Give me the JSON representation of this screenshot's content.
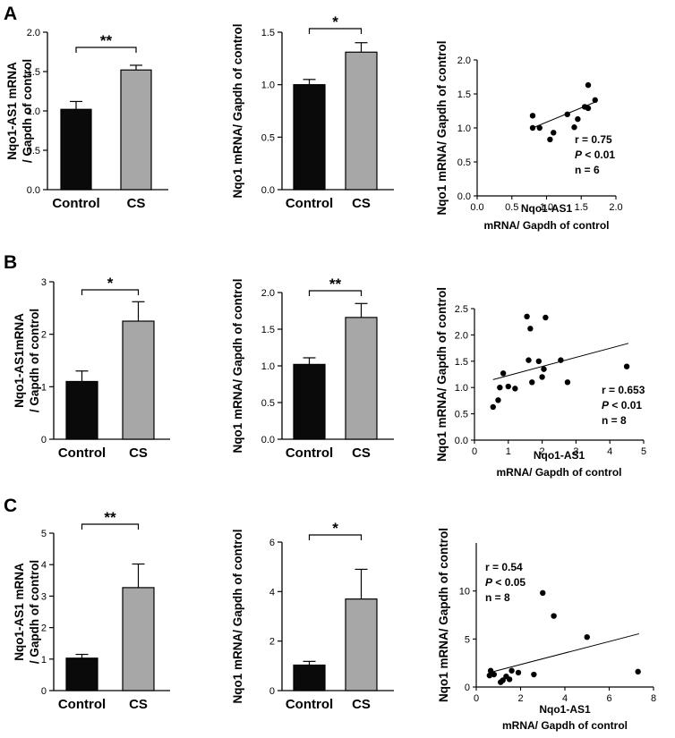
{
  "chart_data": [
    {
      "panel": "A",
      "type": "bar",
      "title": "",
      "categories": [
        "Control",
        "CS"
      ],
      "values": [
        1.02,
        1.52
      ],
      "errors": [
        0.1,
        0.06
      ],
      "bar_colors": [
        "#0a0a0a",
        "#a7a7a7"
      ],
      "ylabel": [
        "Nqo1-AS1 mRNA",
        "/ Gapdh of control"
      ],
      "ylim": [
        0,
        2.0
      ],
      "yticks": [
        "0.0",
        "0.5",
        "1.0",
        "1.5",
        "2.0"
      ],
      "significance": "**"
    },
    {
      "panel": "A",
      "type": "bar",
      "title": "",
      "categories": [
        "Control",
        "CS"
      ],
      "values": [
        1.0,
        1.31
      ],
      "errors": [
        0.05,
        0.09
      ],
      "bar_colors": [
        "#0a0a0a",
        "#a7a7a7"
      ],
      "ylabel": [
        "Nqo1 mRNA/ Gapdh of control"
      ],
      "ylim": [
        0,
        1.5
      ],
      "yticks": [
        "0.0",
        "0.5",
        "1.0",
        "1.5"
      ],
      "significance": "*"
    },
    {
      "panel": "A",
      "type": "scatter",
      "title": "",
      "x": [
        0.8,
        0.8,
        0.9,
        1.05,
        1.1,
        1.3,
        1.4,
        1.45,
        1.55,
        1.6,
        1.6,
        1.7
      ],
      "y": [
        1.18,
        1.0,
        1.0,
        0.83,
        0.93,
        1.2,
        1.01,
        1.13,
        1.31,
        1.29,
        1.63,
        1.41
      ],
      "trend": [
        [
          0.8,
          1.0
        ],
        [
          1.7,
          1.38
        ]
      ],
      "xlabel": [
        "Nqo1-AS1",
        "mRNA/ Gapdh of control"
      ],
      "ylabel": [
        "Nqo1 mRNA/ Gapdh of control"
      ],
      "xlim": [
        0,
        2.0
      ],
      "ylim": [
        0,
        2.0
      ],
      "xticks": [
        "0.0",
        "0.5",
        "1.0",
        "1.5",
        "2.0"
      ],
      "yticks": [
        "0.0",
        "0.5",
        "1.0",
        "1.5",
        "2.0"
      ],
      "stats": [
        {
          "key": "r",
          "sep": " = ",
          "value": "0.75"
        },
        {
          "key": "P",
          "sep": " < ",
          "value": "0.01"
        },
        {
          "key": "n",
          "sep": " = ",
          "value": "6"
        }
      ]
    },
    {
      "panel": "B",
      "type": "bar",
      "title": "",
      "categories": [
        "Control",
        "CS"
      ],
      "values": [
        1.1,
        2.25
      ],
      "errors": [
        0.2,
        0.37
      ],
      "bar_colors": [
        "#0a0a0a",
        "#a7a7a7"
      ],
      "ylabel": [
        "Nqo1-AS1mRNA",
        "/ Gapdh of control"
      ],
      "ylim": [
        0,
        3
      ],
      "yticks": [
        "0",
        "1",
        "2",
        "3"
      ],
      "significance": "*"
    },
    {
      "panel": "B",
      "type": "bar",
      "title": "",
      "categories": [
        "Control",
        "CS"
      ],
      "values": [
        1.02,
        1.66
      ],
      "errors": [
        0.09,
        0.19
      ],
      "bar_colors": [
        "#0a0a0a",
        "#a7a7a7"
      ],
      "ylabel": [
        "Nqo1 mRNA/ Gapdh of control"
      ],
      "ylim": [
        0,
        2.0
      ],
      "yticks": [
        "0.0",
        "0.5",
        "1.0",
        "1.5",
        "2.0"
      ],
      "significance": "**"
    },
    {
      "panel": "B",
      "type": "scatter",
      "title": "",
      "x": [
        0.55,
        0.7,
        0.75,
        0.85,
        1.0,
        1.2,
        1.55,
        1.6,
        1.65,
        1.7,
        1.9,
        2.0,
        2.05,
        2.1,
        2.55,
        2.75,
        4.5
      ],
      "y": [
        0.63,
        0.76,
        1.0,
        1.27,
        1.02,
        0.98,
        2.35,
        1.52,
        2.12,
        1.1,
        1.5,
        1.2,
        1.35,
        2.33,
        1.52,
        1.1,
        1.4
      ],
      "trend": [
        [
          0.55,
          1.15
        ],
        [
          4.55,
          1.84
        ]
      ],
      "xlabel": [
        "Nqo1-AS1",
        "mRNA/ Gapdh of control"
      ],
      "ylabel": [
        "Nqo1 mRNA/ Gapdh of control"
      ],
      "xlim": [
        0,
        5
      ],
      "ylim": [
        0,
        2.5
      ],
      "xticks": [
        "0",
        "1",
        "2",
        "3",
        "4",
        "5"
      ],
      "yticks": [
        "0.0",
        "0.5",
        "1.0",
        "1.5",
        "2.0",
        "2.5"
      ],
      "stats": [
        {
          "key": "r",
          "sep": " = ",
          "value": "0.653"
        },
        {
          "key": "P",
          "sep": " < ",
          "value": "0.01"
        },
        {
          "key": "n",
          "sep": " = ",
          "value": "8"
        }
      ]
    },
    {
      "panel": "C",
      "type": "bar",
      "title": "",
      "categories": [
        "Control",
        "CS"
      ],
      "values": [
        1.03,
        3.27
      ],
      "errors": [
        0.12,
        0.75
      ],
      "bar_colors": [
        "#0a0a0a",
        "#a7a7a7"
      ],
      "ylabel": [
        "Nqo1-AS1 mRNA",
        "/ Gapdh of control"
      ],
      "ylim": [
        0,
        5
      ],
      "yticks": [
        "0",
        "1",
        "2",
        "3",
        "4",
        "5"
      ],
      "significance": "**"
    },
    {
      "panel": "C",
      "type": "bar",
      "title": "",
      "categories": [
        "Control",
        "CS"
      ],
      "values": [
        1.03,
        3.7
      ],
      "errors": [
        0.15,
        1.2
      ],
      "bar_colors": [
        "#0a0a0a",
        "#a7a7a7"
      ],
      "ylabel": [
        "Nqo1 mRNA/ Gapdh of control"
      ],
      "ylim": [
        0,
        6
      ],
      "yticks": [
        "0",
        "2",
        "4",
        "6"
      ],
      "significance": "*"
    },
    {
      "panel": "C",
      "type": "scatter",
      "title": "",
      "x": [
        0.6,
        0.65,
        0.8,
        1.1,
        1.2,
        1.35,
        1.5,
        1.6,
        1.9,
        2.6,
        3.0,
        3.5,
        5.0,
        7.3
      ],
      "y": [
        1.2,
        1.7,
        1.3,
        0.5,
        0.7,
        1.1,
        0.8,
        1.7,
        1.5,
        1.3,
        9.8,
        7.4,
        5.2,
        1.6
      ],
      "trend": [
        [
          0.6,
          1.5
        ],
        [
          7.35,
          5.55
        ]
      ],
      "xlabel": [
        "Nqo1-AS1",
        "mRNA/ Gapdh of control"
      ],
      "ylabel": [
        "Nqo1 mRNA/ Gapdh of control"
      ],
      "xlim": [
        0,
        8
      ],
      "ylim": [
        0,
        15
      ],
      "xticks": [
        "0",
        "2",
        "4",
        "6",
        "8"
      ],
      "yticks": [
        "0",
        "5",
        "10"
      ],
      "stats": [
        {
          "key": "r",
          "sep": " = ",
          "value": "0.54"
        },
        {
          "key": "P",
          "sep": " < ",
          "value": "0.05"
        },
        {
          "key": "n",
          "sep": " = ",
          "value": "8"
        }
      ]
    }
  ]
}
